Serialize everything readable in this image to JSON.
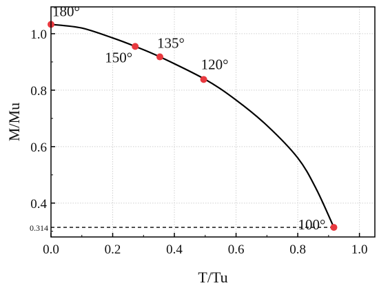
{
  "chart_data": {
    "type": "line",
    "xlabel": "T/Tu",
    "ylabel": "M/Mu",
    "xlim": [
      0.0,
      1.05
    ],
    "ylim": [
      0.28,
      1.095
    ],
    "grid": true,
    "x_ticks": [
      0.0,
      0.2,
      0.4,
      0.6,
      0.8,
      1.0
    ],
    "x_tick_labels": [
      "0.0",
      "0.2",
      "0.4",
      "0.6",
      "0.8",
      "1.0"
    ],
    "y_ticks": [
      0.4,
      0.6,
      0.8,
      1.0
    ],
    "y_tick_labels": [
      "0.4",
      "0.6",
      "0.8",
      "1.0"
    ],
    "curve": {
      "x": [
        0.0,
        0.1,
        0.2,
        0.273,
        0.353,
        0.5,
        0.6,
        0.7,
        0.8,
        0.86,
        0.917
      ],
      "y": [
        1.033,
        1.02,
        0.985,
        0.955,
        0.918,
        0.838,
        0.765,
        0.675,
        0.56,
        0.45,
        0.314
      ]
    },
    "points": [
      {
        "label": "180°",
        "x": 0.0,
        "y": 1.033
      },
      {
        "label": "150°",
        "x": 0.273,
        "y": 0.955
      },
      {
        "label": "135°",
        "x": 0.353,
        "y": 0.918
      },
      {
        "label": "120°",
        "x": 0.495,
        "y": 0.838
      },
      {
        "label": "100°",
        "x": 0.917,
        "y": 0.314
      }
    ],
    "reference_line": {
      "y": 0.314,
      "label": "0.314",
      "style": "dashed"
    },
    "colors": {
      "curve": "#000000",
      "points": "#e8393f",
      "grid": "#cfcfcf"
    }
  }
}
